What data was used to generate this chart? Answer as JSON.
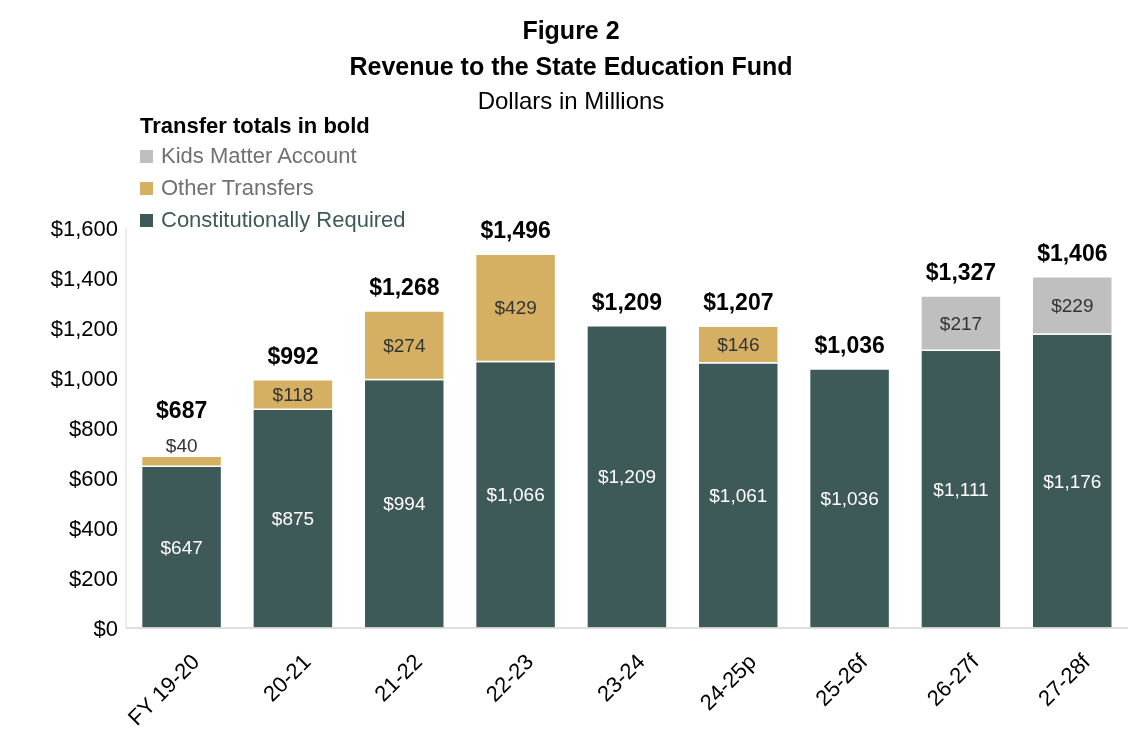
{
  "chart_data": {
    "type": "bar",
    "title": "Figure 2\nRevenue to the State Education Fund",
    "subtitle": "Dollars in Millions",
    "legend_title": "Transfer totals in bold",
    "categories": [
      "FY 19-20",
      "20-21",
      "21-22",
      "22-23",
      "23-24",
      "24-25p",
      "25-26f",
      "26-27f",
      "27-28f"
    ],
    "stacked": true,
    "series": [
      {
        "name": "Constitutionally Required",
        "color": "#3e5a58",
        "values": [
          647,
          875,
          994,
          1066,
          1209,
          1061,
          1036,
          1111,
          1176
        ],
        "value_labels": [
          "$647",
          "$875",
          "$994",
          "$1,066",
          "$1,209",
          "$1,061",
          "$1,036",
          "$1,111",
          "$1,176"
        ]
      },
      {
        "name": "Other Transfers",
        "color": "#d5b062",
        "values": [
          40,
          118,
          274,
          429,
          null,
          146,
          null,
          null,
          null
        ],
        "value_labels": [
          "$40",
          "$118",
          "$274",
          "$429",
          null,
          "$146",
          null,
          null,
          null
        ]
      },
      {
        "name": "Kids Matter Account",
        "color": "#bfbfbf",
        "values": [
          null,
          null,
          null,
          null,
          null,
          null,
          null,
          217,
          229
        ],
        "value_labels": [
          null,
          null,
          null,
          null,
          null,
          null,
          null,
          "$217",
          "$229"
        ]
      }
    ],
    "totals": [
      "$687",
      "$992",
      "$1,268",
      "$1,496",
      "$1,209",
      "$1,207",
      "$1,036",
      "$1,327",
      "$1,406"
    ],
    "ylim": [
      0,
      1600
    ],
    "yticks": [
      {
        "value": 0,
        "label": "$0"
      },
      {
        "value": 200,
        "label": "$200"
      },
      {
        "value": 400,
        "label": "$400"
      },
      {
        "value": 600,
        "label": "$600"
      },
      {
        "value": 800,
        "label": "$800"
      },
      {
        "value": 1000,
        "label": "$1,000"
      },
      {
        "value": 1200,
        "label": "$1,200"
      },
      {
        "value": 1400,
        "label": "$1,400"
      },
      {
        "value": 1600,
        "label": "$1,600"
      }
    ],
    "grid": false,
    "legend": "top left"
  }
}
